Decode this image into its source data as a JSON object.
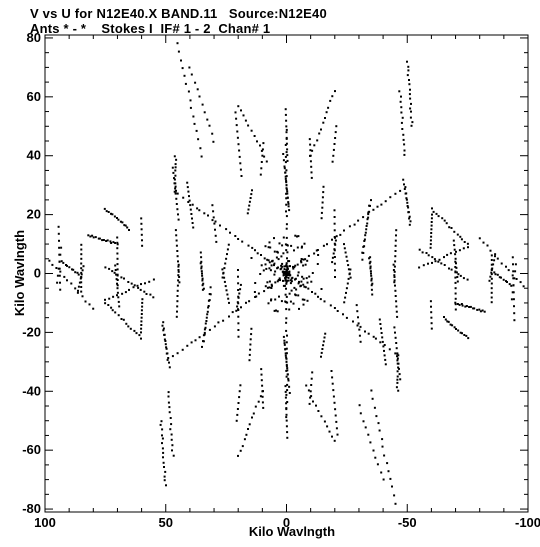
{
  "header": {
    "title_line1": "V vs U for N12E40.X BAND.11   Source:N12E40",
    "title_line2": "Ants * - *    Stokes I  IF# 1 - 2  Chan# 1"
  },
  "chart_data": {
    "type": "scatter",
    "title": "V vs U for N12E40.X BAND.11   Source:N12E40",
    "subtitle": "Ants * - *    Stokes I  IF# 1 - 2  Chan# 1",
    "xlabel": "Kilo Wavlngth",
    "ylabel": "Kilo Wavlngth",
    "xlim": [
      100,
      -100
    ],
    "ylim": [
      -81,
      81
    ],
    "x_ticks": [
      100,
      50,
      0,
      -50,
      -100
    ],
    "y_ticks": [
      -80,
      -60,
      -40,
      -20,
      0,
      20,
      40,
      60,
      80
    ],
    "x_tick_labels": [
      "100",
      "50",
      "0",
      "-50",
      "-100"
    ],
    "y_tick_labels": [
      "-80",
      "-60",
      "-40",
      "-20",
      "0",
      "20",
      "40",
      "60",
      "80"
    ],
    "grid": false,
    "marker_color": "#000000",
    "description_of_points": "uv-coverage: six-armed snowflake pattern of short tracks along radial directions, conjugate-symmetric about origin",
    "points_sample": [
      [
        46,
        28
      ],
      [
        40,
        24
      ],
      [
        30,
        18
      ],
      [
        20,
        12
      ],
      [
        10,
        6
      ],
      [
        0,
        0
      ],
      [
        -46,
        -28
      ],
      [
        -40,
        -24
      ],
      [
        -30,
        -18
      ],
      [
        -20,
        -12
      ],
      [
        -10,
        -6
      ],
      [
        -50,
        24
      ],
      [
        -40,
        20
      ],
      [
        -33,
        15
      ],
      [
        -20,
        9
      ],
      [
        50,
        -24
      ],
      [
        40,
        -20
      ],
      [
        33,
        -15
      ],
      [
        20,
        -9
      ],
      [
        0,
        48
      ],
      [
        0,
        40
      ],
      [
        0,
        30
      ],
      [
        0,
        20
      ],
      [
        0,
        10
      ],
      [
        0,
        -48
      ],
      [
        0,
        -40
      ],
      [
        0,
        -30
      ],
      [
        0,
        -20
      ],
      [
        0,
        -10
      ],
      [
        94,
        4
      ],
      [
        85,
        0
      ],
      [
        -94,
        -4
      ],
      [
        -85,
        0
      ],
      [
        -50,
        72
      ],
      [
        -52,
        60
      ],
      [
        50,
        -72
      ],
      [
        52,
        -60
      ],
      [
        45,
        77
      ],
      [
        40,
        70
      ],
      [
        -45,
        -77
      ],
      [
        -40,
        -70
      ]
    ]
  }
}
